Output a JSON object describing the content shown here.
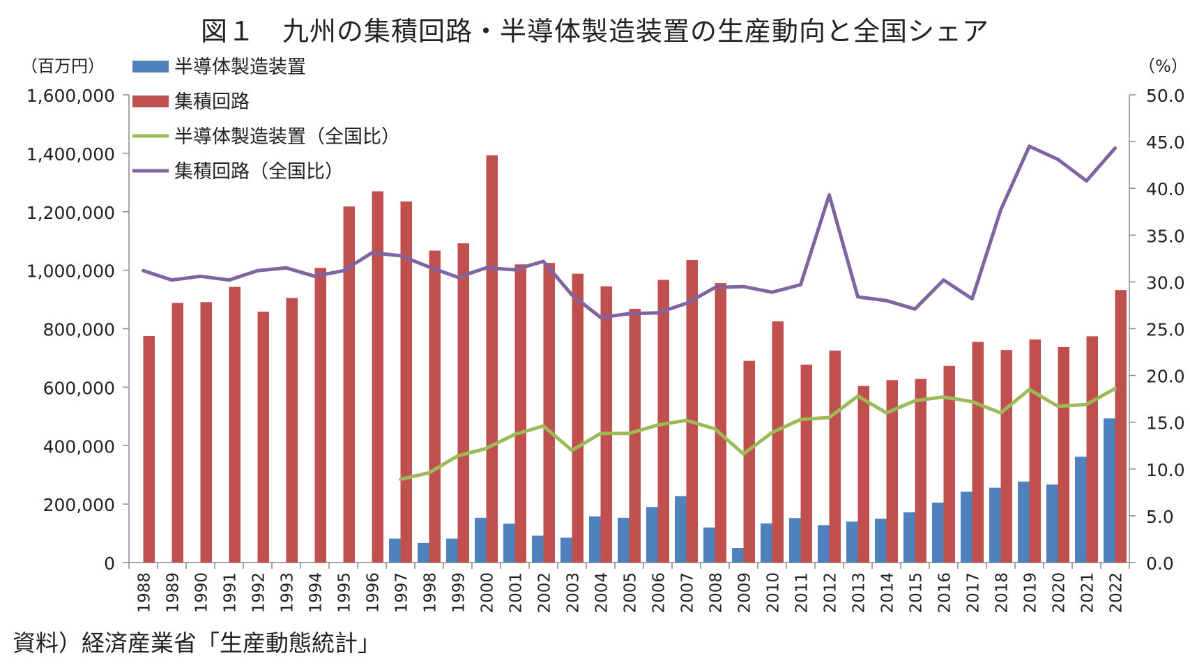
{
  "title": "図１　九州の集積回路・半導体製造装置の生産動向と全国シェア",
  "source": "資料）経済産業省「生産動態統計」",
  "chart_data": {
    "type": "bar",
    "left_axis": {
      "unit_label": "（百万円）",
      "ylim": [
        0,
        1600000
      ],
      "ticks": [
        "0",
        "200,000",
        "400,000",
        "600,000",
        "800,000",
        "1,000,000",
        "1,200,000",
        "1,400,000",
        "1,600,000"
      ]
    },
    "right_axis": {
      "unit_label": "（%）",
      "ylim": [
        0,
        50
      ],
      "ticks": [
        "0.0",
        "5.0",
        "10.0",
        "15.0",
        "20.0",
        "25.0",
        "30.0",
        "35.0",
        "40.0",
        "45.0",
        "50.0"
      ]
    },
    "categories": [
      "1988",
      "1989",
      "1990",
      "1991",
      "1992",
      "1993",
      "1994",
      "1995",
      "1996",
      "1997",
      "1998",
      "1999",
      "2000",
      "2001",
      "2002",
      "2003",
      "2004",
      "2005",
      "2006",
      "2007",
      "2008",
      "2009",
      "2010",
      "2011",
      "2012",
      "2013",
      "2014",
      "2015",
      "2016",
      "2017",
      "2018",
      "2019",
      "2020",
      "2021",
      "2022"
    ],
    "series": [
      {
        "name": "半導体製造装置",
        "kind": "bar",
        "axis": "left",
        "color": "#4f81bd",
        "values": [
          null,
          null,
          null,
          null,
          null,
          null,
          null,
          null,
          null,
          82000,
          67000,
          82000,
          153000,
          133000,
          92000,
          85000,
          158000,
          153000,
          190000,
          227000,
          120000,
          50000,
          134000,
          152000,
          128000,
          140000,
          150000,
          172000,
          205000,
          242000,
          256000,
          277000,
          267000,
          362000,
          493000
        ]
      },
      {
        "name": "集積回路",
        "kind": "bar",
        "axis": "left",
        "color": "#c0504d",
        "values": [
          775000,
          888000,
          891000,
          943000,
          858000,
          905000,
          1008000,
          1218000,
          1270000,
          1235000,
          1067000,
          1092000,
          1393000,
          1020000,
          1025000,
          988000,
          945000,
          868000,
          967000,
          1035000,
          956000,
          690000,
          825000,
          677000,
          725000,
          604000,
          624000,
          628000,
          673000,
          755000,
          727000,
          763000,
          737000,
          774000,
          932000
        ]
      },
      {
        "name": "半導体製造装置（全国比）",
        "kind": "line",
        "axis": "right",
        "color": "#9bbb59",
        "values": [
          null,
          null,
          null,
          null,
          null,
          null,
          null,
          null,
          null,
          8.9,
          9.6,
          11.4,
          12.2,
          13.7,
          14.6,
          12.0,
          13.8,
          13.8,
          14.7,
          15.2,
          14.3,
          11.6,
          13.9,
          15.3,
          15.5,
          17.8,
          16.0,
          17.3,
          17.7,
          17.2,
          16.0,
          18.5,
          16.7,
          16.9,
          18.6
        ]
      },
      {
        "name": "集積回路（全国比）",
        "kind": "line",
        "axis": "right",
        "color": "#8064a2",
        "values": [
          31.2,
          30.2,
          30.6,
          30.2,
          31.2,
          31.5,
          30.6,
          31.2,
          33.1,
          32.8,
          31.6,
          30.5,
          31.5,
          31.3,
          32.2,
          28.6,
          26.2,
          26.6,
          26.7,
          27.7,
          29.4,
          29.5,
          28.9,
          29.7,
          39.3,
          28.4,
          28.0,
          27.1,
          30.2,
          28.2,
          37.7,
          44.5,
          43.1,
          40.8,
          44.3
        ]
      }
    ],
    "legend": "top-left",
    "grid": false
  }
}
